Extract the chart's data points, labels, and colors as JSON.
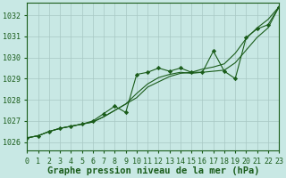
{
  "title": "Graphe pression niveau de la mer (hPa)",
  "x_labels": [
    "0",
    "1",
    "2",
    "3",
    "4",
    "5",
    "6",
    "7",
    "8",
    "9",
    "10",
    "11",
    "12",
    "13",
    "14",
    "15",
    "16",
    "17",
    "18",
    "19",
    "20",
    "21",
    "22",
    "23"
  ],
  "xlim": [
    0,
    23
  ],
  "ylim": [
    1025.6,
    1032.6
  ],
  "yticks": [
    1026,
    1027,
    1028,
    1029,
    1030,
    1031,
    1032
  ],
  "background_color": "#c8e8e4",
  "grid_color": "#a8c8c4",
  "line_color": "#1a5c1a",
  "text_color": "#1a5c1a",
  "line1": [
    1026.2,
    1026.3,
    1026.5,
    1026.65,
    1026.75,
    1026.85,
    1026.95,
    1027.2,
    1027.5,
    1027.8,
    1028.1,
    1028.6,
    1028.85,
    1029.1,
    1029.25,
    1029.3,
    1029.45,
    1029.55,
    1029.7,
    1030.2,
    1030.9,
    1031.4,
    1031.8,
    1032.4
  ],
  "line2": [
    1026.2,
    1026.3,
    1026.5,
    1026.65,
    1026.75,
    1026.85,
    1026.95,
    1027.2,
    1027.5,
    1027.8,
    1028.3,
    1028.75,
    1029.05,
    1029.2,
    1029.3,
    1029.25,
    1029.3,
    1029.35,
    1029.4,
    1029.75,
    1030.35,
    1030.95,
    1031.4,
    1032.4
  ],
  "line3": [
    1026.2,
    1026.3,
    1026.5,
    1026.65,
    1026.75,
    1026.85,
    1027.0,
    1027.35,
    1027.7,
    1027.4,
    1029.2,
    1029.3,
    1029.5,
    1029.35,
    1029.5,
    1029.3,
    1029.3,
    1030.3,
    1029.35,
    1029.0,
    1030.95,
    1031.35,
    1031.55,
    1032.4
  ],
  "title_fontsize": 7.5,
  "tick_fontsize": 6
}
